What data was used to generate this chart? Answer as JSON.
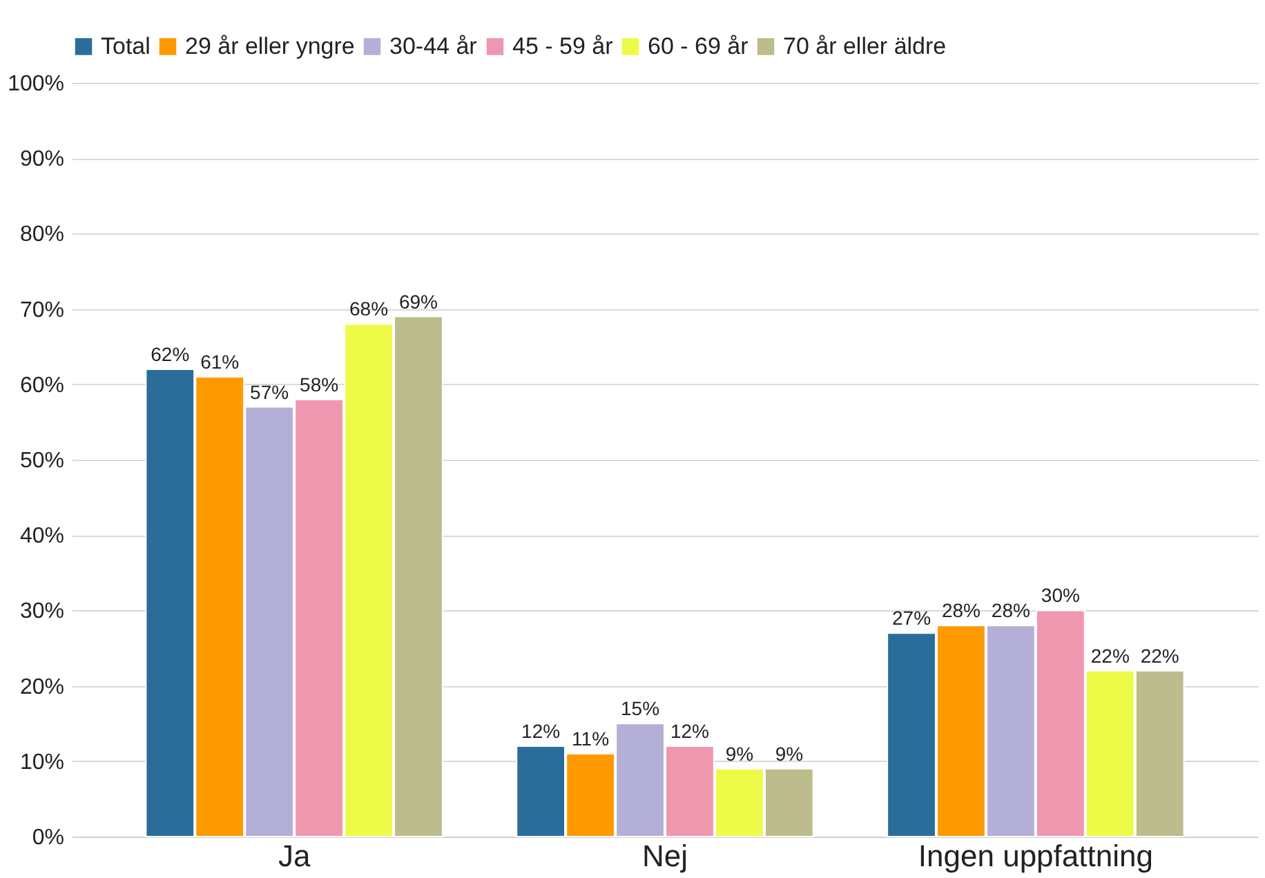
{
  "chart_data": {
    "type": "bar",
    "categories": [
      "Ja",
      "Nej",
      "Ingen uppfattning"
    ],
    "series": [
      {
        "name": "Total",
        "color": "#2a6d9b",
        "values": [
          62,
          12,
          27
        ],
        "value_labels": [
          "62%",
          "12%",
          "27%"
        ]
      },
      {
        "name": "29 år eller yngre",
        "color": "#ff9900",
        "values": [
          61,
          11,
          28
        ],
        "value_labels": [
          "61%",
          "11%",
          "28%"
        ]
      },
      {
        "name": "30-44 år",
        "color": "#b4afd6",
        "values": [
          57,
          15,
          28
        ],
        "value_labels": [
          "57%",
          "15%",
          "28%"
        ]
      },
      {
        "name": "45 - 59 år",
        "color": "#f097b0",
        "values": [
          58,
          12,
          30
        ],
        "value_labels": [
          "58%",
          "12%",
          "30%"
        ]
      },
      {
        "name": "60 - 69 år",
        "color": "#eefa48",
        "values": [
          68,
          9,
          22
        ],
        "value_labels": [
          "68%",
          "9%",
          "22%"
        ]
      },
      {
        "name": "70 år eller äldre",
        "color": "#bcbc8c",
        "values": [
          69,
          9,
          22
        ],
        "value_labels": [
          "69%",
          "9%",
          "22%"
        ]
      }
    ],
    "ylim": [
      0,
      100
    ],
    "yticks": [
      {
        "value": 0,
        "label": "0%"
      },
      {
        "value": 10,
        "label": "10%"
      },
      {
        "value": 20,
        "label": "20%"
      },
      {
        "value": 30,
        "label": "30%"
      },
      {
        "value": 40,
        "label": "40%"
      },
      {
        "value": 50,
        "label": "50%"
      },
      {
        "value": 60,
        "label": "60%"
      },
      {
        "value": 70,
        "label": "70%"
      },
      {
        "value": 80,
        "label": "80%"
      },
      {
        "value": 90,
        "label": "90%"
      },
      {
        "value": 100,
        "label": "100%"
      }
    ],
    "grid": "y",
    "legend": "top"
  }
}
